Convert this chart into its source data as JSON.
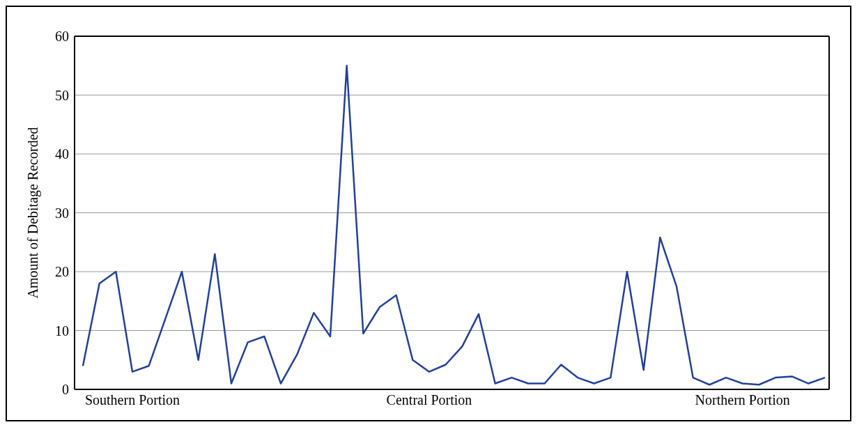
{
  "chart_data": {
    "type": "line",
    "ylabel": "Amount of Debitage Recorded",
    "categories": [
      null,
      null,
      null,
      "Southern Portion",
      null,
      null,
      null,
      null,
      null,
      null,
      null,
      null,
      null,
      null,
      null,
      null,
      null,
      null,
      null,
      null,
      null,
      "Central Portion",
      null,
      null,
      null,
      null,
      null,
      null,
      null,
      null,
      null,
      null,
      null,
      null,
      null,
      null,
      null,
      null,
      null,
      null,
      "Northern Portion",
      null,
      null,
      null,
      null,
      null
    ],
    "series": [
      {
        "color": "#22409a",
        "values": [
          4,
          18,
          20,
          3,
          4,
          12,
          20,
          5,
          23,
          1,
          8,
          9,
          1,
          6,
          13,
          9,
          55,
          9.5,
          14,
          16,
          5,
          3,
          4.2,
          7.3,
          12.8,
          1,
          2,
          1,
          1,
          4.2,
          2,
          1,
          2,
          20,
          3.3,
          25.8,
          17.5,
          2,
          0.8,
          2,
          1,
          0.8,
          2,
          2.2,
          1,
          2
        ]
      }
    ],
    "ylim": [
      0,
      60
    ],
    "yticks": [
      0,
      10,
      20,
      30,
      40,
      50,
      60
    ],
    "grid": "y",
    "marker": "none",
    "line_style": "solid"
  }
}
